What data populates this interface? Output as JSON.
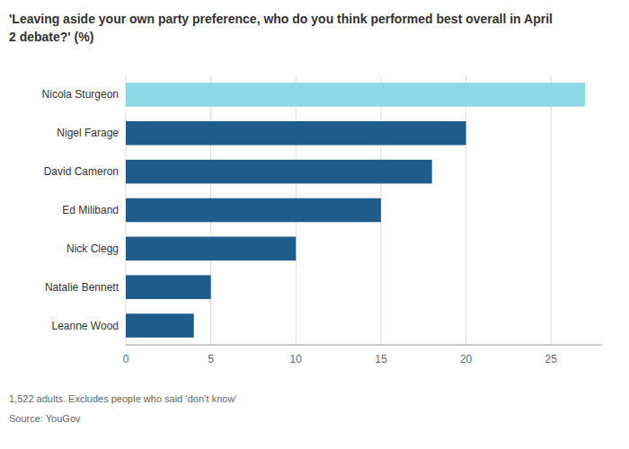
{
  "chart_data": {
    "type": "bar",
    "orientation": "horizontal",
    "title": "'Leaving aside your own party preference, who do you think performed best overall in April\n2 debate?' (%)",
    "categories": [
      "Nicola Sturgeon",
      "Nigel Farage",
      "David Cameron",
      "Ed Miliband",
      "Nick Clegg",
      "Natalie Bennett",
      "Leanne Wood"
    ],
    "values": [
      27,
      20,
      18,
      15,
      10,
      5,
      4
    ],
    "colors": [
      "#8dd9e8",
      "#1f5c8b",
      "#1f5c8b",
      "#1f5c8b",
      "#1f5c8b",
      "#1f5c8b",
      "#1f5c8b"
    ],
    "xlim": [
      0,
      28
    ],
    "xticks": [
      0,
      5,
      10,
      15,
      20,
      25
    ],
    "grid": true,
    "annotations": [
      "1,522 adults. Excludes people who said ‘don’t know’",
      "Source: YouGov"
    ]
  }
}
